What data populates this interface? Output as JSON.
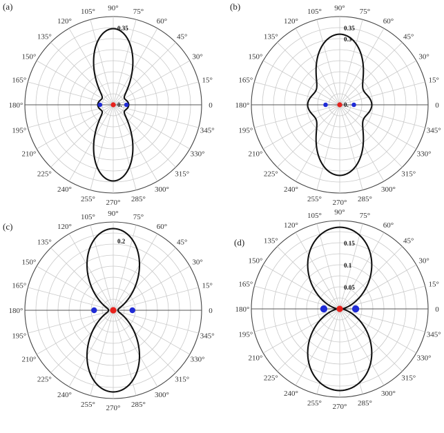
{
  "chart_data": [
    {
      "type": "polar",
      "panel_label": "(a)",
      "angle_ticks": [
        "0",
        "15°",
        "30°",
        "45°",
        "60°",
        "75°",
        "90°",
        "105°",
        "120°",
        "135°",
        "150°",
        "165°",
        "180°",
        "195°",
        "210°",
        "225°",
        "240°",
        "255°",
        "270°",
        "285°",
        "300°",
        "315°",
        "330°",
        "345°"
      ],
      "radial_ticks": [
        {
          "value": 0,
          "label": "0."
        },
        {
          "value": 0.35,
          "label": "0.35"
        }
      ],
      "r_max": 0.4,
      "curve": {
        "main_lobe": 0.345,
        "side_lobe": 0.07,
        "lobe_width": 0.18
      },
      "markers": {
        "center_color": "#e8211c",
        "side_color": "#1f2bd6",
        "side_offset": 0.06,
        "side_size": "small"
      }
    },
    {
      "type": "polar",
      "panel_label": "(b)",
      "angle_ticks": [
        "0",
        "15°",
        "30°",
        "45°",
        "60°",
        "75°",
        "90°",
        "105°",
        "120°",
        "135°",
        "150°",
        "165°",
        "180°",
        "195°",
        "210°",
        "225°",
        "240°",
        "255°",
        "270°",
        "285°",
        "300°",
        "315°",
        "330°",
        "345°"
      ],
      "radial_ticks": [
        {
          "value": 0,
          "label": "0."
        },
        {
          "value": 0.3,
          "label": "0.3"
        },
        {
          "value": 0.35,
          "label": "0.35"
        }
      ],
      "r_max": 0.4,
      "curve": {
        "main_lobe": 0.32,
        "side_lobe": 0.145,
        "lobe_width": 0.25
      },
      "markers": {
        "center_color": "#e8211c",
        "side_color": "#1f2bd6",
        "side_offset": 0.064,
        "side_size": "small"
      }
    },
    {
      "type": "polar",
      "panel_label": "(c)",
      "angle_ticks": [
        "0",
        "15°",
        "30°",
        "45°",
        "60°",
        "75°",
        "90°",
        "105°",
        "120°",
        "135°",
        "150°",
        "165°",
        "180°",
        "195°",
        "210°",
        "225°",
        "240°",
        "255°",
        "270°",
        "285°",
        "300°",
        "315°",
        "330°",
        "345°"
      ],
      "radial_ticks": [
        {
          "value": 0.2,
          "label": "0.2"
        }
      ],
      "r_max": 0.254,
      "curve": {
        "main_lobe": 0.235,
        "side_lobe": 0.014,
        "lobe_width": 0.31
      },
      "markers": {
        "center_color": "#e8211c",
        "side_color": "#1f2bd6",
        "side_offset": 0.055,
        "side_size": "medium"
      }
    },
    {
      "type": "polar",
      "panel_label": "(d)",
      "angle_ticks": [
        "0",
        "15°",
        "30°",
        "45°",
        "60°",
        "75°",
        "90°",
        "105°",
        "120°",
        "135°",
        "150°",
        "165°",
        "180°",
        "195°",
        "210°",
        "225°",
        "240°",
        "255°",
        "270°",
        "285°",
        "300°",
        "315°",
        "330°",
        "345°"
      ],
      "radial_ticks": [
        {
          "value": 0.05,
          "label": "0.05"
        },
        {
          "value": 0.1,
          "label": "0.1"
        },
        {
          "value": 0.15,
          "label": "0.15"
        }
      ],
      "r_max": 0.2,
      "curve": {
        "main_lobe": 0.185,
        "side_lobe": 0.007,
        "lobe_width": 0.5
      },
      "markers": {
        "center_color": "#e8211c",
        "side_color": "#1f2bd6",
        "side_offset": 0.036,
        "side_size": "large"
      }
    }
  ]
}
